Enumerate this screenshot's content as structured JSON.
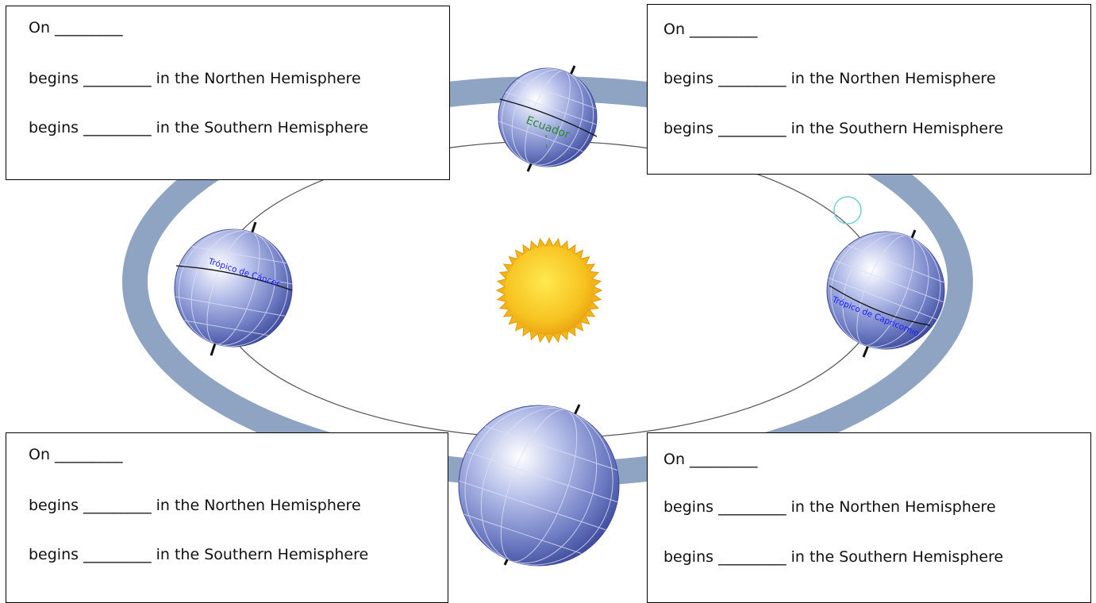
{
  "boxes": [
    {
      "id": "top-left",
      "line1": "On _________",
      "line2": "begins _________ in the Northen Hemisphere",
      "line3": "begins _________ in the Southern Hemisphere"
    },
    {
      "id": "top-right",
      "line1": "On _________",
      "line2": "begins _________ in the Northen Hemisphere",
      "line3": "begins _________ in the Southern Hemisphere"
    },
    {
      "id": "bottom-left",
      "line1": "On _________",
      "line2": "begins _________ in the Northen Hemisphere",
      "line3": "begins _________ in the Southern Hemisphere"
    },
    {
      "id": "bottom-right",
      "line1": "On _________",
      "line2": "begins _________ in the Northen Hemisphere",
      "line3": "begins _________ in the Southern Hemisphere"
    }
  ],
  "earth_labels": {
    "equator": "Ecuador",
    "tropic_cancer": "Trópico de Cáncer",
    "tropic_capricorn": "Trópico de Capricornio"
  },
  "colors": {
    "outer_ring": "#8fa3c2",
    "orbit_line": "#555555",
    "globe_fill": "#6f7fc4",
    "globe_grid": "#d8def2",
    "sun_fill": "#f4bb1a",
    "sun_core": "#ffe44d",
    "equator_label": "#2a8a2a",
    "tropic_label": "#1a1aff"
  }
}
